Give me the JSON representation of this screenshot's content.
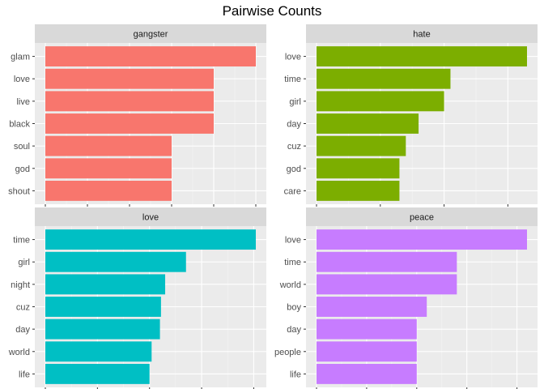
{
  "title": "Pairwise Counts",
  "chart_data": [
    {
      "type": "bar",
      "orientation": "horizontal",
      "title": "gangster",
      "categories": [
        "glam",
        "love",
        "live",
        "black",
        "soul",
        "god",
        "shout"
      ],
      "values": [
        5,
        4,
        4,
        4,
        3,
        3,
        3
      ],
      "xticks": [
        0,
        1,
        2,
        3,
        4,
        5
      ],
      "xlim": [
        -0.25,
        5.25
      ],
      "color": "#F8766D",
      "grid": true
    },
    {
      "type": "bar",
      "orientation": "horizontal",
      "title": "hate",
      "categories": [
        "love",
        "time",
        "girl",
        "day",
        "cuz",
        "god",
        "care"
      ],
      "values": [
        33,
        21,
        20,
        16,
        14,
        13,
        13
      ],
      "xticks": [
        0,
        10,
        20,
        30
      ],
      "xlim": [
        -1.65,
        34.65
      ],
      "color": "#7CAE00",
      "grid": true
    },
    {
      "type": "bar",
      "orientation": "horizontal",
      "title": "love",
      "categories": [
        "time",
        "girl",
        "night",
        "cuz",
        "day",
        "world",
        "life"
      ],
      "values": [
        202,
        135,
        115,
        111,
        110,
        102,
        100
      ],
      "xticks": [
        0,
        50,
        100,
        150,
        200
      ],
      "xlim": [
        -10.1,
        212.1
      ],
      "color": "#00BFC4",
      "grid": true
    },
    {
      "type": "bar",
      "orientation": "horizontal",
      "title": "peace",
      "categories": [
        "love",
        "time",
        "world",
        "boy",
        "day",
        "people",
        "life"
      ],
      "values": [
        21,
        14,
        14,
        11,
        10,
        10,
        10
      ],
      "xticks": [
        0,
        5,
        10,
        15,
        20
      ],
      "xlim": [
        -1.05,
        22.05
      ],
      "color": "#C77CFF",
      "grid": true
    }
  ]
}
